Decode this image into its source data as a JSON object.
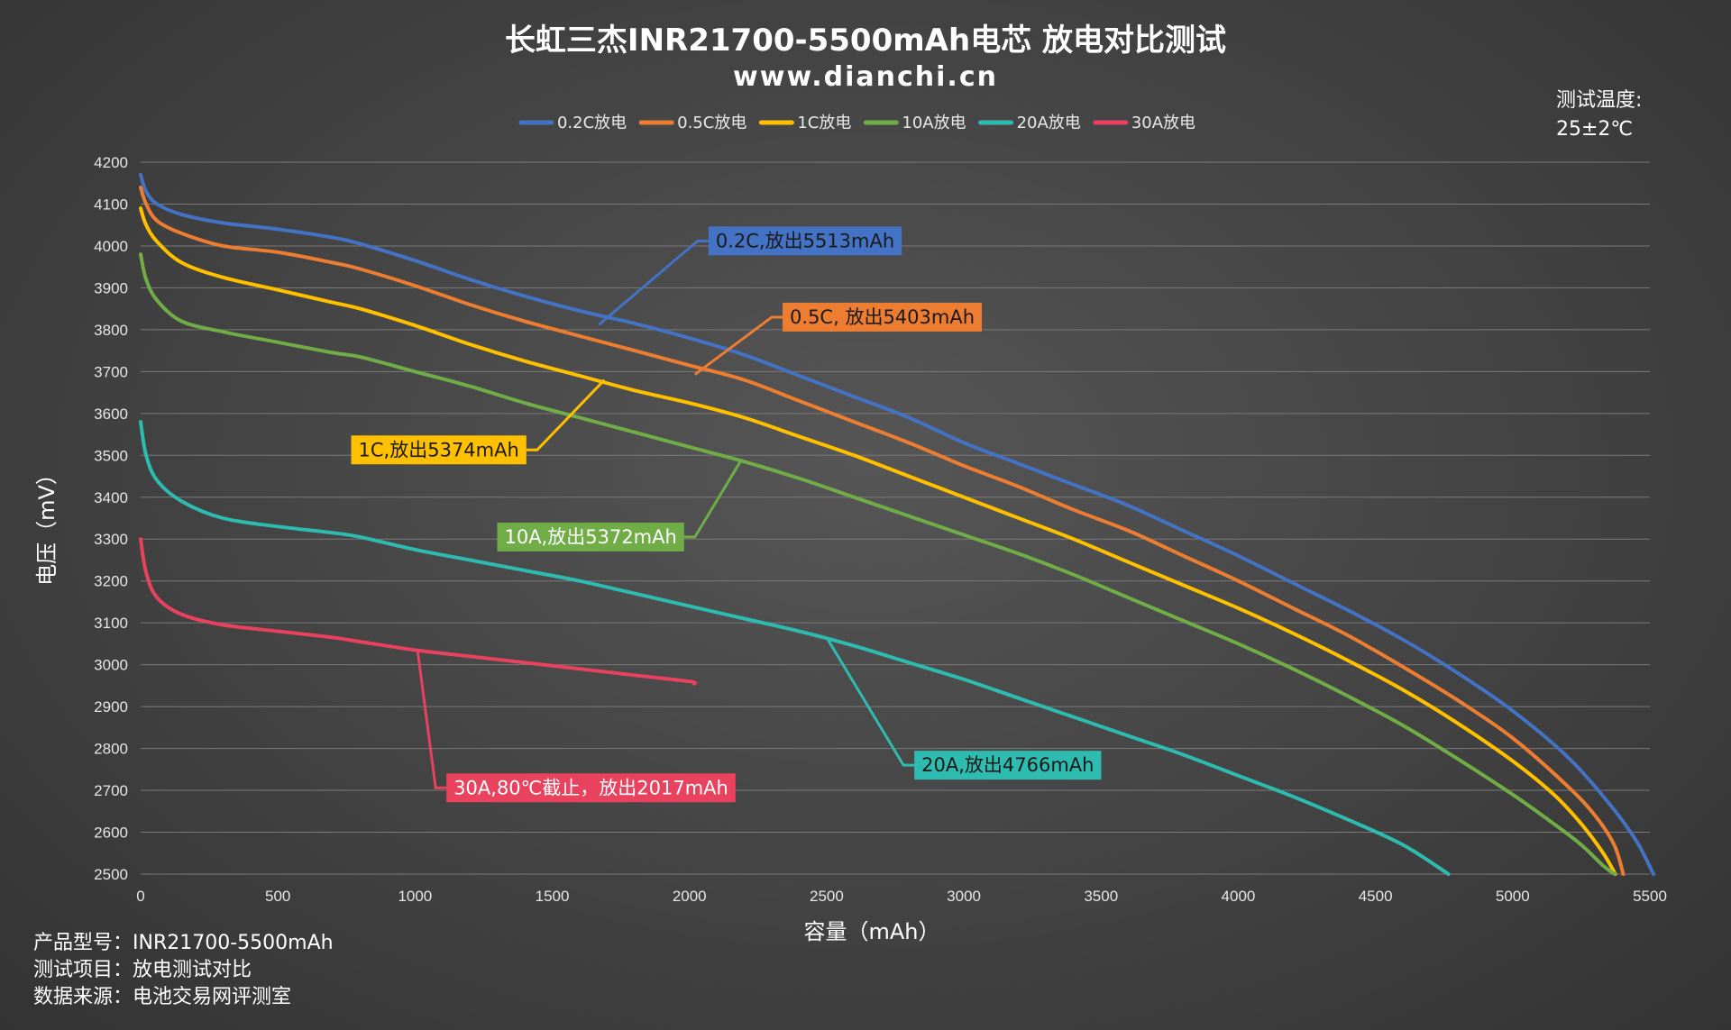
{
  "chart_data": {
    "type": "line",
    "title": "长虹三杰INR21700-5500mAh电芯 放电对比测试",
    "subtitle": "www.dianchi.cn",
    "xlabel": "容量（mAh）",
    "ylabel": "电压（mV）",
    "xlim": [
      0,
      5500
    ],
    "ylim": [
      2500,
      4200
    ],
    "xticks": [
      0,
      500,
      1000,
      1500,
      2000,
      2500,
      3000,
      3500,
      4000,
      4500,
      5000,
      5500
    ],
    "yticks": [
      2500,
      2600,
      2700,
      2800,
      2900,
      3000,
      3100,
      3200,
      3300,
      3400,
      3500,
      3600,
      3700,
      3800,
      3900,
      4000,
      4100,
      4200
    ],
    "grid": "horizontal",
    "legend_position": "top",
    "temperature_label": "测试温度:",
    "temperature_value": "25±2℃",
    "series": [
      {
        "name": "0.2C放电",
        "color": "#4472c4",
        "points": [
          [
            0,
            4170
          ],
          [
            20,
            4130
          ],
          [
            60,
            4100
          ],
          [
            150,
            4075
          ],
          [
            300,
            4055
          ],
          [
            500,
            4040
          ],
          [
            700,
            4020
          ],
          [
            800,
            4005
          ],
          [
            1000,
            3965
          ],
          [
            1200,
            3920
          ],
          [
            1400,
            3880
          ],
          [
            1600,
            3845
          ],
          [
            1800,
            3815
          ],
          [
            2000,
            3780
          ],
          [
            2200,
            3740
          ],
          [
            2400,
            3690
          ],
          [
            2600,
            3640
          ],
          [
            2800,
            3590
          ],
          [
            3000,
            3530
          ],
          [
            3200,
            3480
          ],
          [
            3400,
            3430
          ],
          [
            3600,
            3380
          ],
          [
            3800,
            3320
          ],
          [
            4000,
            3260
          ],
          [
            4200,
            3195
          ],
          [
            4400,
            3130
          ],
          [
            4600,
            3060
          ],
          [
            4800,
            2980
          ],
          [
            5000,
            2890
          ],
          [
            5200,
            2780
          ],
          [
            5350,
            2670
          ],
          [
            5450,
            2580
          ],
          [
            5513,
            2500
          ]
        ]
      },
      {
        "name": "0.5C放电",
        "color": "#ed7d31",
        "points": [
          [
            0,
            4140
          ],
          [
            20,
            4100
          ],
          [
            60,
            4060
          ],
          [
            150,
            4030
          ],
          [
            300,
            4000
          ],
          [
            500,
            3985
          ],
          [
            700,
            3960
          ],
          [
            800,
            3945
          ],
          [
            1000,
            3905
          ],
          [
            1200,
            3860
          ],
          [
            1400,
            3820
          ],
          [
            1600,
            3785
          ],
          [
            1800,
            3750
          ],
          [
            2000,
            3715
          ],
          [
            2200,
            3680
          ],
          [
            2400,
            3630
          ],
          [
            2600,
            3580
          ],
          [
            2800,
            3530
          ],
          [
            3000,
            3475
          ],
          [
            3200,
            3425
          ],
          [
            3400,
            3370
          ],
          [
            3600,
            3320
          ],
          [
            3800,
            3260
          ],
          [
            4000,
            3200
          ],
          [
            4200,
            3135
          ],
          [
            4400,
            3070
          ],
          [
            4600,
            2995
          ],
          [
            4800,
            2915
          ],
          [
            5000,
            2825
          ],
          [
            5200,
            2710
          ],
          [
            5300,
            2640
          ],
          [
            5370,
            2570
          ],
          [
            5403,
            2500
          ]
        ]
      },
      {
        "name": "1C放电",
        "color": "#ffc000",
        "points": [
          [
            0,
            4090
          ],
          [
            20,
            4050
          ],
          [
            60,
            4010
          ],
          [
            150,
            3960
          ],
          [
            300,
            3925
          ],
          [
            500,
            3895
          ],
          [
            700,
            3865
          ],
          [
            800,
            3850
          ],
          [
            1000,
            3810
          ],
          [
            1200,
            3765
          ],
          [
            1400,
            3725
          ],
          [
            1600,
            3690
          ],
          [
            1800,
            3655
          ],
          [
            2000,
            3625
          ],
          [
            2200,
            3590
          ],
          [
            2400,
            3545
          ],
          [
            2600,
            3500
          ],
          [
            2800,
            3450
          ],
          [
            3000,
            3400
          ],
          [
            3200,
            3350
          ],
          [
            3400,
            3300
          ],
          [
            3600,
            3245
          ],
          [
            3800,
            3190
          ],
          [
            4000,
            3135
          ],
          [
            4200,
            3075
          ],
          [
            4400,
            3010
          ],
          [
            4600,
            2940
          ],
          [
            4800,
            2860
          ],
          [
            5000,
            2770
          ],
          [
            5150,
            2690
          ],
          [
            5250,
            2620
          ],
          [
            5330,
            2550
          ],
          [
            5374,
            2500
          ]
        ]
      },
      {
        "name": "10A放电",
        "color": "#70ad47",
        "points": [
          [
            0,
            3980
          ],
          [
            20,
            3920
          ],
          [
            60,
            3870
          ],
          [
            150,
            3820
          ],
          [
            300,
            3795
          ],
          [
            500,
            3770
          ],
          [
            700,
            3745
          ],
          [
            800,
            3735
          ],
          [
            1000,
            3700
          ],
          [
            1200,
            3665
          ],
          [
            1400,
            3625
          ],
          [
            1600,
            3590
          ],
          [
            1800,
            3555
          ],
          [
            2000,
            3520
          ],
          [
            2200,
            3485
          ],
          [
            2400,
            3445
          ],
          [
            2600,
            3400
          ],
          [
            2800,
            3355
          ],
          [
            3000,
            3310
          ],
          [
            3200,
            3265
          ],
          [
            3400,
            3215
          ],
          [
            3600,
            3160
          ],
          [
            3800,
            3105
          ],
          [
            4000,
            3050
          ],
          [
            4200,
            2990
          ],
          [
            4400,
            2925
          ],
          [
            4600,
            2855
          ],
          [
            4800,
            2775
          ],
          [
            5000,
            2690
          ],
          [
            5150,
            2620
          ],
          [
            5250,
            2570
          ],
          [
            5330,
            2520
          ],
          [
            5372,
            2500
          ]
        ]
      },
      {
        "name": "20A放电",
        "color": "#2ebbb0",
        "points": [
          [
            0,
            3580
          ],
          [
            20,
            3500
          ],
          [
            60,
            3440
          ],
          [
            150,
            3390
          ],
          [
            300,
            3350
          ],
          [
            500,
            3330
          ],
          [
            700,
            3315
          ],
          [
            800,
            3305
          ],
          [
            1000,
            3275
          ],
          [
            1200,
            3250
          ],
          [
            1400,
            3225
          ],
          [
            1600,
            3200
          ],
          [
            1800,
            3170
          ],
          [
            2000,
            3140
          ],
          [
            2200,
            3110
          ],
          [
            2400,
            3080
          ],
          [
            2600,
            3045
          ],
          [
            2800,
            3005
          ],
          [
            3000,
            2965
          ],
          [
            3200,
            2920
          ],
          [
            3400,
            2875
          ],
          [
            3600,
            2830
          ],
          [
            3800,
            2785
          ],
          [
            4000,
            2735
          ],
          [
            4200,
            2685
          ],
          [
            4400,
            2630
          ],
          [
            4600,
            2570
          ],
          [
            4766,
            2500
          ]
        ]
      },
      {
        "name": "30A放电",
        "color": "#e8425f",
        "points": [
          [
            0,
            3300
          ],
          [
            20,
            3220
          ],
          [
            60,
            3160
          ],
          [
            150,
            3120
          ],
          [
            300,
            3095
          ],
          [
            500,
            3080
          ],
          [
            700,
            3065
          ],
          [
            800,
            3055
          ],
          [
            1000,
            3035
          ],
          [
            1200,
            3020
          ],
          [
            1400,
            3005
          ],
          [
            1600,
            2990
          ],
          [
            1800,
            2975
          ],
          [
            2000,
            2960
          ],
          [
            2017,
            2955
          ]
        ]
      }
    ],
    "annotations": [
      {
        "text": "0.2C,放出5513mAh",
        "color": "#4472c4",
        "text_color": "#1a1a1a",
        "anchor": [
          1670,
          3812
        ],
        "elbow": [
          2030,
          4012
        ]
      },
      {
        "text": "0.5C, 放出5403mAh",
        "color": "#ed7d31",
        "text_color": "#1a1a1a",
        "anchor": [
          2020,
          3693
        ],
        "elbow": [
          2300,
          3830
        ]
      },
      {
        "text": "1C,放出5374mAh",
        "color": "#ffc000",
        "text_color": "#1a1a1a",
        "anchor": [
          1690,
          3680
        ],
        "elbow": [
          1445,
          3513
        ]
      },
      {
        "text": "10A,放出5372mAh",
        "color": "#70ad47",
        "text_color": "#ffffff",
        "anchor": [
          2190,
          3490
        ],
        "elbow": [
          2020,
          3305
        ]
      },
      {
        "text": "20A,放出4766mAh",
        "color": "#2ebbb0",
        "text_color": "#1a1a1a",
        "anchor": [
          2500,
          3065
        ],
        "elbow": [
          2780,
          2760
        ]
      },
      {
        "text": "30A,80℃截止，放出2017mAh",
        "color": "#e8425f",
        "text_color": "#ffffff",
        "anchor": [
          1010,
          3030
        ],
        "elbow": [
          1075,
          2706
        ]
      }
    ]
  },
  "info": [
    "产品型号：INR21700-5500mAh",
    "测试项目：放电测试对比",
    "数据来源：电池交易网评测室"
  ]
}
